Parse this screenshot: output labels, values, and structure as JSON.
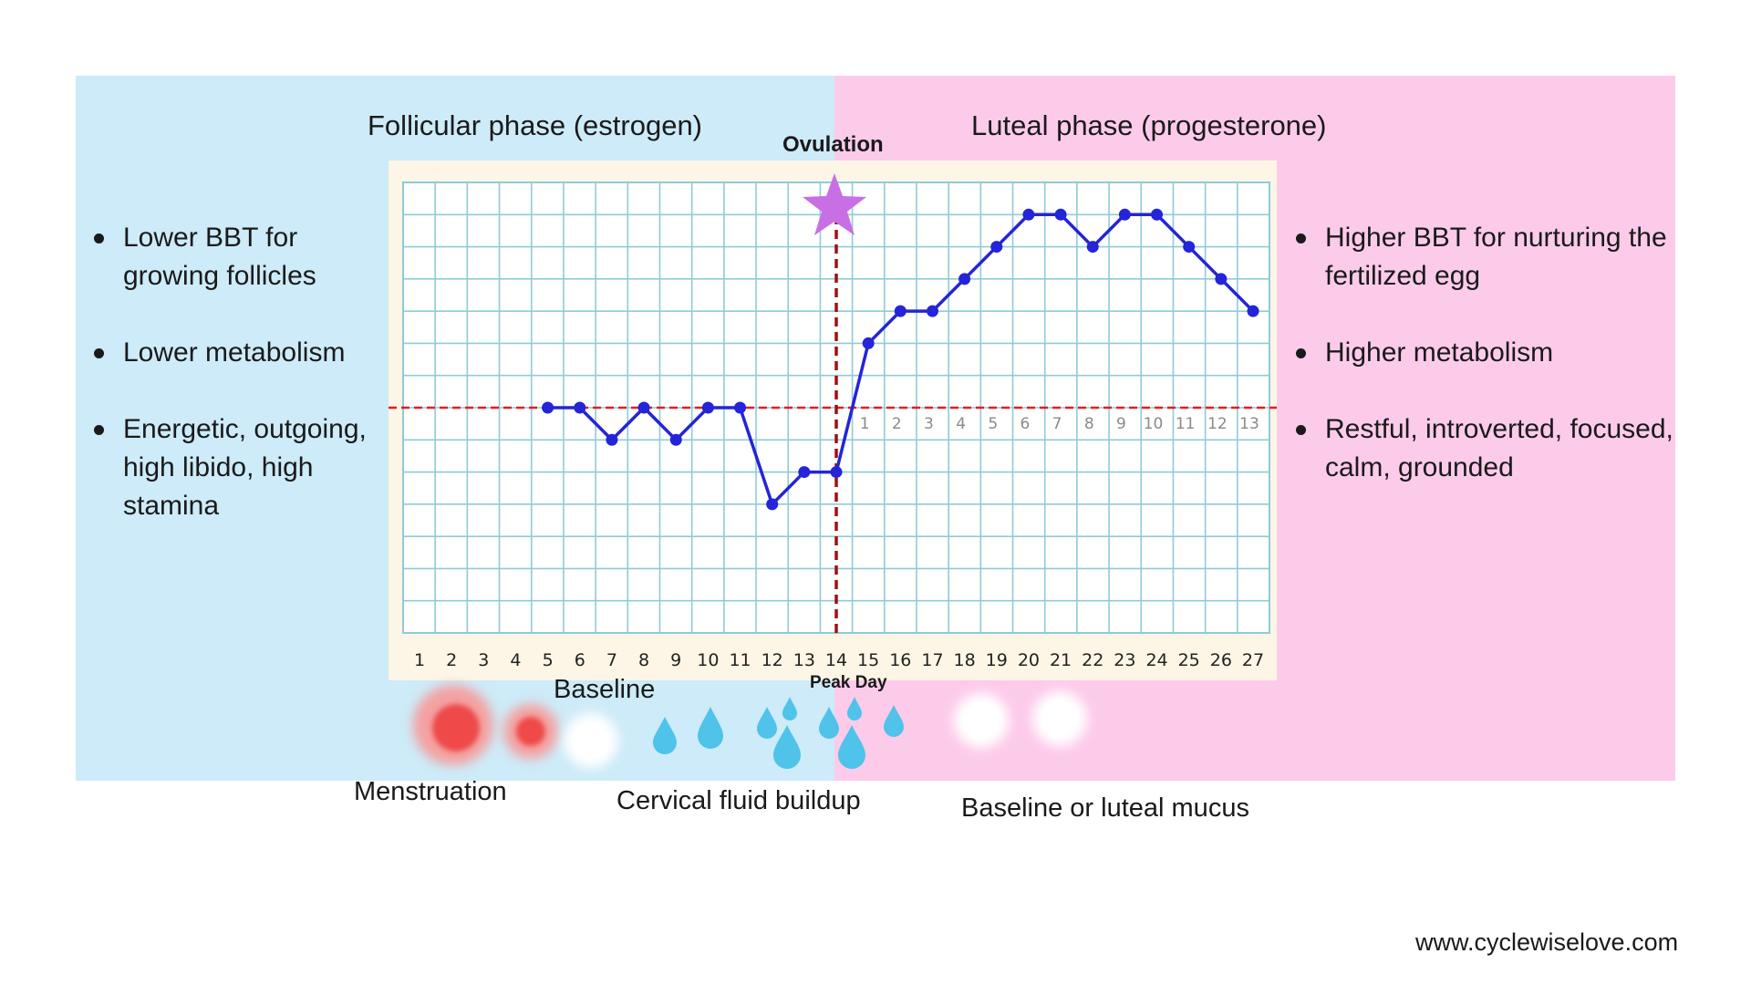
{
  "phases": {
    "follicular_title": "Follicular phase (estrogen)",
    "luteal_title": "Luteal phase (progesterone)",
    "ovulation_label": "Ovulation",
    "peak_day_label": "Peak Day"
  },
  "left_bullets": [
    "Lower BBT for growing follicles",
    "Lower metabolism",
    "Energetic, outgoing, high libido, high stamina"
  ],
  "right_bullets": [
    "Higher BBT for nurturing the fertilized egg",
    "Higher metabolism",
    "Restful, introverted, focused, calm, grounded"
  ],
  "captions": {
    "baseline": "Baseline",
    "menstruation": "Menstruation",
    "cervical_fluid": "Cervical fluid buildup",
    "luteal_mucus": "Baseline or luteal mucus"
  },
  "website": "www.cyclewiselove.com",
  "colors": {
    "follicular_bg": "#cdebf8",
    "luteal_bg": "#fdcbea",
    "line": "#2424d8",
    "coverline": "#e02020",
    "ovulation_line": "#a01010",
    "star": "#c86fe6",
    "grid": "#8fcbd8",
    "drop": "#4fc3ea",
    "blood": "#ef4a4a"
  },
  "icons": {
    "ovulation_marker": "star-icon",
    "menstruation": "blood-cloud-icon",
    "baseline": "white-cloud-icon",
    "cervical_fluid": "water-drop-icon"
  },
  "chart_data": {
    "type": "line",
    "x": [
      5,
      6,
      7,
      8,
      9,
      10,
      11,
      12,
      13,
      14,
      15,
      16,
      17,
      18,
      19,
      20,
      21,
      22,
      23,
      24,
      25,
      26,
      27
    ],
    "series": [
      {
        "values": [
          7,
          7,
          6,
          7,
          6,
          7,
          7,
          4,
          5,
          5,
          9,
          10,
          10,
          11,
          12,
          13,
          13,
          12,
          13,
          13,
          12,
          11,
          10
        ]
      }
    ],
    "x_tick_labels": [
      "1",
      "2",
      "3",
      "4",
      "5",
      "6",
      "7",
      "8",
      "9",
      "10",
      "11",
      "12",
      "13",
      "14",
      "15",
      "16",
      "17",
      "18",
      "19",
      "20",
      "21",
      "22",
      "23",
      "24",
      "25",
      "26",
      "27"
    ],
    "luteal_day_labels": [
      "1",
      "2",
      "3",
      "4",
      "5",
      "6",
      "7",
      "8",
      "9",
      "10",
      "11",
      "12",
      "13"
    ],
    "xlim": [
      1,
      27
    ],
    "ylim": [
      0,
      14
    ],
    "coverline_y": 7,
    "ovulation_x": 14,
    "grid": true
  }
}
